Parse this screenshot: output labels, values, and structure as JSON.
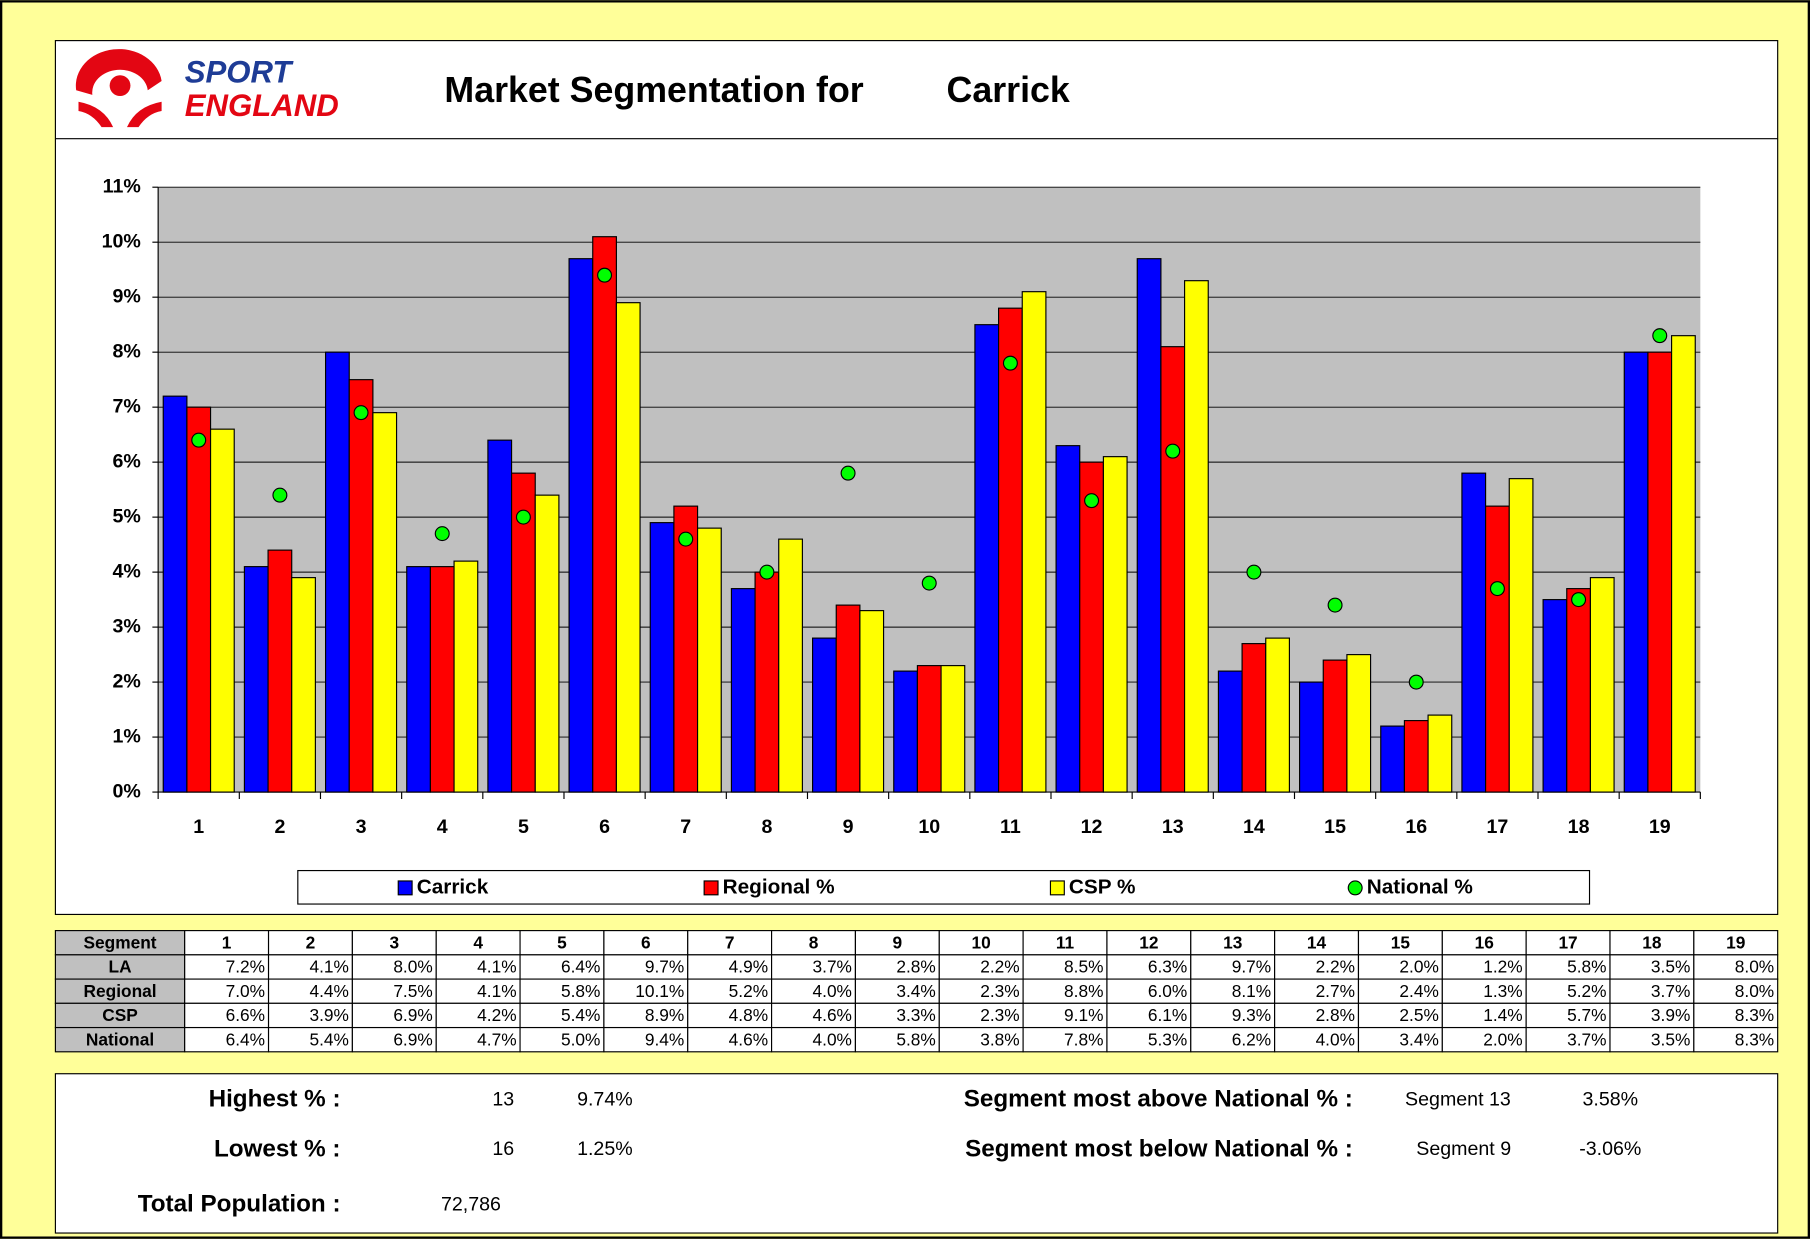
{
  "header": {
    "logo_top": "SPORT",
    "logo_bottom": "ENGLAND",
    "title": "Market Segmentation for",
    "area": "Carrick"
  },
  "chart_data": {
    "type": "bar",
    "categories": [
      "1",
      "2",
      "3",
      "4",
      "5",
      "6",
      "7",
      "8",
      "9",
      "10",
      "11",
      "12",
      "13",
      "14",
      "15",
      "16",
      "17",
      "18",
      "19"
    ],
    "ylim": [
      0,
      11
    ],
    "yticks": [
      {
        "value": 0,
        "label": "0%"
      },
      {
        "value": 1,
        "label": "1%"
      },
      {
        "value": 2,
        "label": "2%"
      },
      {
        "value": 3,
        "label": "3%"
      },
      {
        "value": 4,
        "label": "4%"
      },
      {
        "value": 5,
        "label": "5%"
      },
      {
        "value": 6,
        "label": "6%"
      },
      {
        "value": 7,
        "label": "7%"
      },
      {
        "value": 8,
        "label": "8%"
      },
      {
        "value": 9,
        "label": "9%"
      },
      {
        "value": 10,
        "label": "10%"
      },
      {
        "value": 11,
        "label": "11%"
      }
    ],
    "grid": true,
    "series": [
      {
        "name": "Carrick",
        "color": "#0000ff",
        "kind": "bar",
        "values": [
          7.2,
          4.1,
          8.0,
          4.1,
          6.4,
          9.7,
          4.9,
          3.7,
          2.8,
          2.2,
          8.5,
          6.3,
          9.7,
          2.2,
          2.0,
          1.2,
          5.8,
          3.5,
          8.0
        ],
        "value_labels": [
          "7.2%",
          "4.1%",
          "8.0%",
          "4.1%",
          "6.4%",
          "9.7%",
          "4.9%",
          "3.7%",
          "2.8%",
          "2.2%",
          "8.5%",
          "6.3%",
          "9.7%",
          "2.2%",
          "2.0%",
          "1.2%",
          "5.8%",
          "3.5%",
          "8.0%"
        ]
      },
      {
        "name": "Regional %",
        "color": "#ff0000",
        "kind": "bar",
        "values": [
          7.0,
          4.4,
          7.5,
          4.1,
          5.8,
          10.1,
          5.2,
          4.0,
          3.4,
          2.3,
          8.8,
          6.0,
          8.1,
          2.7,
          2.4,
          1.3,
          5.2,
          3.7,
          8.0
        ],
        "value_labels": [
          "7.0%",
          "4.4%",
          "7.5%",
          "4.1%",
          "5.8%",
          "10.1%",
          "5.2%",
          "4.0%",
          "3.4%",
          "2.3%",
          "8.8%",
          "6.0%",
          "8.1%",
          "2.7%",
          "2.4%",
          "1.3%",
          "5.2%",
          "3.7%",
          "8.0%"
        ]
      },
      {
        "name": "CSP %",
        "color": "#ffff00",
        "kind": "bar",
        "values": [
          6.6,
          3.9,
          6.9,
          4.2,
          5.4,
          8.9,
          4.8,
          4.6,
          3.3,
          2.3,
          9.1,
          6.1,
          9.3,
          2.8,
          2.5,
          1.4,
          5.7,
          3.9,
          8.3
        ],
        "value_labels": [
          "6.6%",
          "3.9%",
          "6.9%",
          "4.2%",
          "5.4%",
          "8.9%",
          "4.8%",
          "4.6%",
          "3.3%",
          "2.3%",
          "9.1%",
          "6.1%",
          "9.3%",
          "2.8%",
          "2.5%",
          "1.4%",
          "5.7%",
          "3.9%",
          "8.3%"
        ]
      },
      {
        "name": "National %",
        "color": "#00ff00",
        "kind": "dot",
        "values": [
          6.4,
          5.4,
          6.9,
          4.7,
          5.0,
          9.4,
          4.6,
          4.0,
          5.8,
          3.8,
          7.8,
          5.3,
          6.2,
          4.0,
          3.4,
          2.0,
          3.7,
          3.5,
          8.3
        ],
        "value_labels": [
          "6.4%",
          "5.4%",
          "6.9%",
          "4.7%",
          "5.0%",
          "9.4%",
          "4.6%",
          "4.0%",
          "5.8%",
          "3.8%",
          "7.8%",
          "5.3%",
          "6.2%",
          "4.0%",
          "3.4%",
          "2.0%",
          "3.7%",
          "3.5%",
          "8.3%"
        ]
      }
    ]
  },
  "table": {
    "corner": "Segment",
    "row_labels": [
      "LA",
      "Regional",
      "CSP",
      "National"
    ]
  },
  "summary": {
    "highest_label": "Highest % :",
    "highest_segment": "13",
    "highest_value": "9.74%",
    "lowest_label": "Lowest % :",
    "lowest_segment": "16",
    "lowest_value": "1.25%",
    "population_label": "Total Population :",
    "population": "72,786",
    "above_label": "Segment most above National % :",
    "above_segment": "Segment 13",
    "above_value": "3.58%",
    "below_label": "Segment most below National % :",
    "below_segment": "Segment 9",
    "below_value": "-3.06%"
  }
}
